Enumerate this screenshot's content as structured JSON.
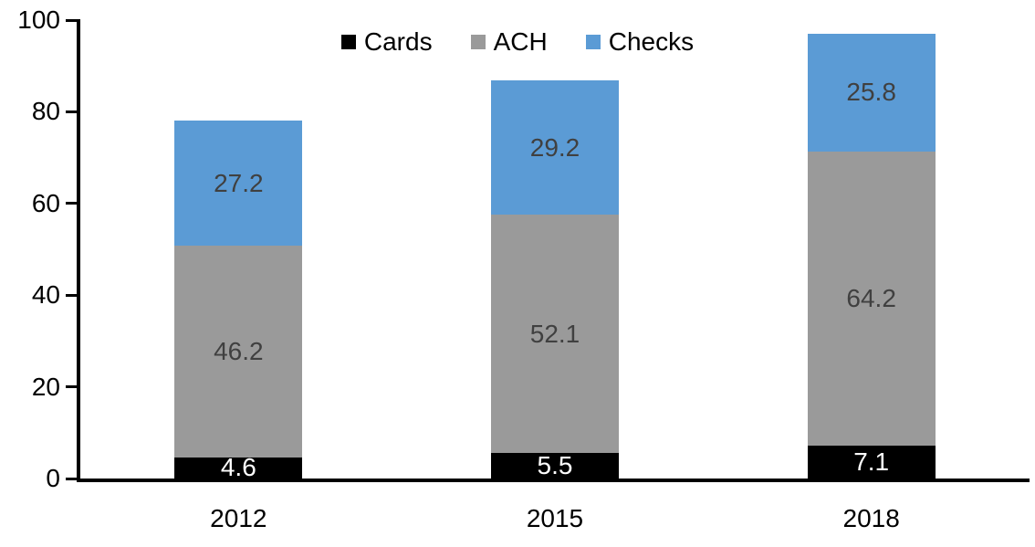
{
  "chart_data": {
    "type": "bar",
    "stacked": true,
    "title": "",
    "xlabel": "",
    "ylabel": "",
    "categories": [
      "2012",
      "2015",
      "2018"
    ],
    "series": [
      {
        "name": "Cards",
        "color": "#000000",
        "label_color": "#ffffff",
        "values": [
          4.6,
          5.5,
          7.1
        ]
      },
      {
        "name": "ACH",
        "color": "#9A9A9A",
        "label_color": "#404040",
        "values": [
          46.2,
          52.1,
          64.2
        ]
      },
      {
        "name": "Checks",
        "color": "#5B9BD5",
        "label_color": "#404040",
        "values": [
          27.2,
          29.2,
          25.8
        ]
      }
    ],
    "ylim": [
      0,
      100
    ],
    "yticks": [
      0,
      20,
      40,
      60,
      80,
      100
    ],
    "legend_position": "top-center",
    "grid": false,
    "axis_color": "#000000",
    "tick_label_color": "#000000"
  }
}
